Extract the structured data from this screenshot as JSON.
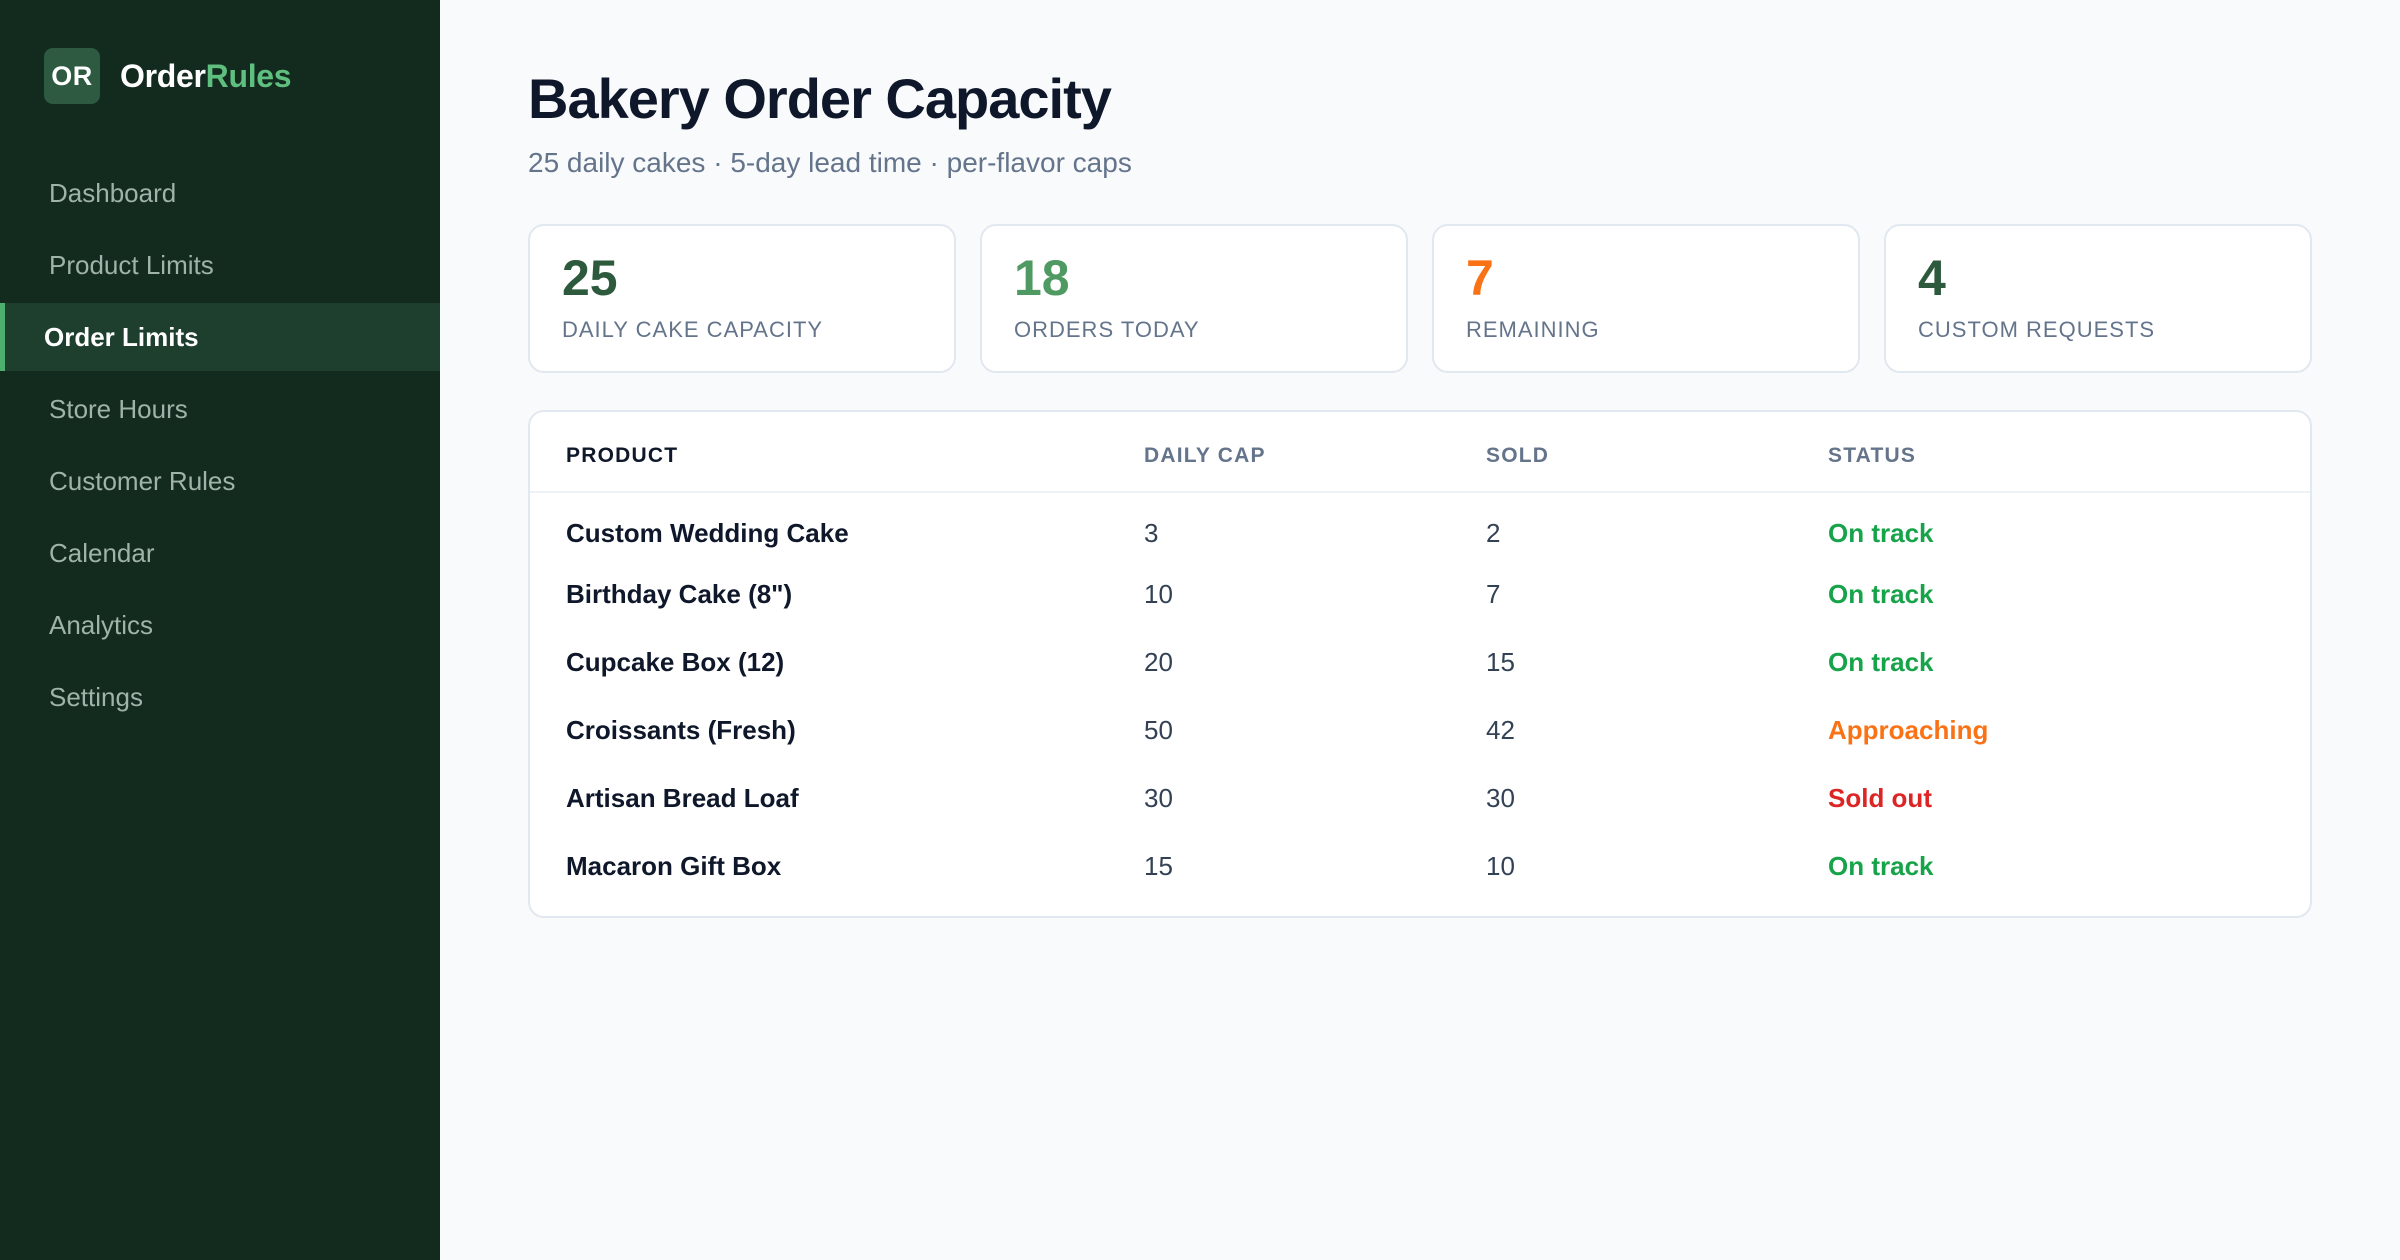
{
  "brand": {
    "badge": "OR",
    "name_primary": "Order",
    "name_accent": "Rules"
  },
  "sidebar": {
    "items": [
      {
        "label": "Dashboard",
        "active": false
      },
      {
        "label": "Product Limits",
        "active": false
      },
      {
        "label": "Order Limits",
        "active": true
      },
      {
        "label": "Store Hours",
        "active": false
      },
      {
        "label": "Customer Rules",
        "active": false
      },
      {
        "label": "Calendar",
        "active": false
      },
      {
        "label": "Analytics",
        "active": false
      },
      {
        "label": "Settings",
        "active": false
      }
    ]
  },
  "header": {
    "title": "Bakery Order Capacity",
    "subtitle": "25 daily cakes · 5-day lead time · per-flavor caps"
  },
  "stats": [
    {
      "value": "25",
      "label": "Daily Cake Capacity",
      "color": "#2d5a3d"
    },
    {
      "value": "18",
      "label": "Orders Today",
      "color": "#4f9a63"
    },
    {
      "value": "7",
      "label": "Remaining",
      "color": "#f97316"
    },
    {
      "value": "4",
      "label": "Custom Requests",
      "color": "#2d5a3d"
    }
  ],
  "table": {
    "headers": {
      "product": "Product",
      "cap": "Daily Cap",
      "sold": "Sold",
      "status": "Status"
    },
    "rows": [
      {
        "product": "Custom Wedding Cake",
        "cap": "3",
        "sold": "2",
        "status": "On track",
        "status_color": "#16a34a"
      },
      {
        "product": "Birthday Cake (8\")",
        "cap": "10",
        "sold": "7",
        "status": "On track",
        "status_color": "#16a34a"
      },
      {
        "product": "Cupcake Box (12)",
        "cap": "20",
        "sold": "15",
        "status": "On track",
        "status_color": "#16a34a"
      },
      {
        "product": "Croissants (Fresh)",
        "cap": "50",
        "sold": "42",
        "status": "Approaching",
        "status_color": "#f97316"
      },
      {
        "product": "Artisan Bread Loaf",
        "cap": "30",
        "sold": "30",
        "status": "Sold out",
        "status_color": "#dc2626"
      },
      {
        "product": "Macaron Gift Box",
        "cap": "15",
        "sold": "10",
        "status": "On track",
        "status_color": "#16a34a"
      }
    ]
  }
}
